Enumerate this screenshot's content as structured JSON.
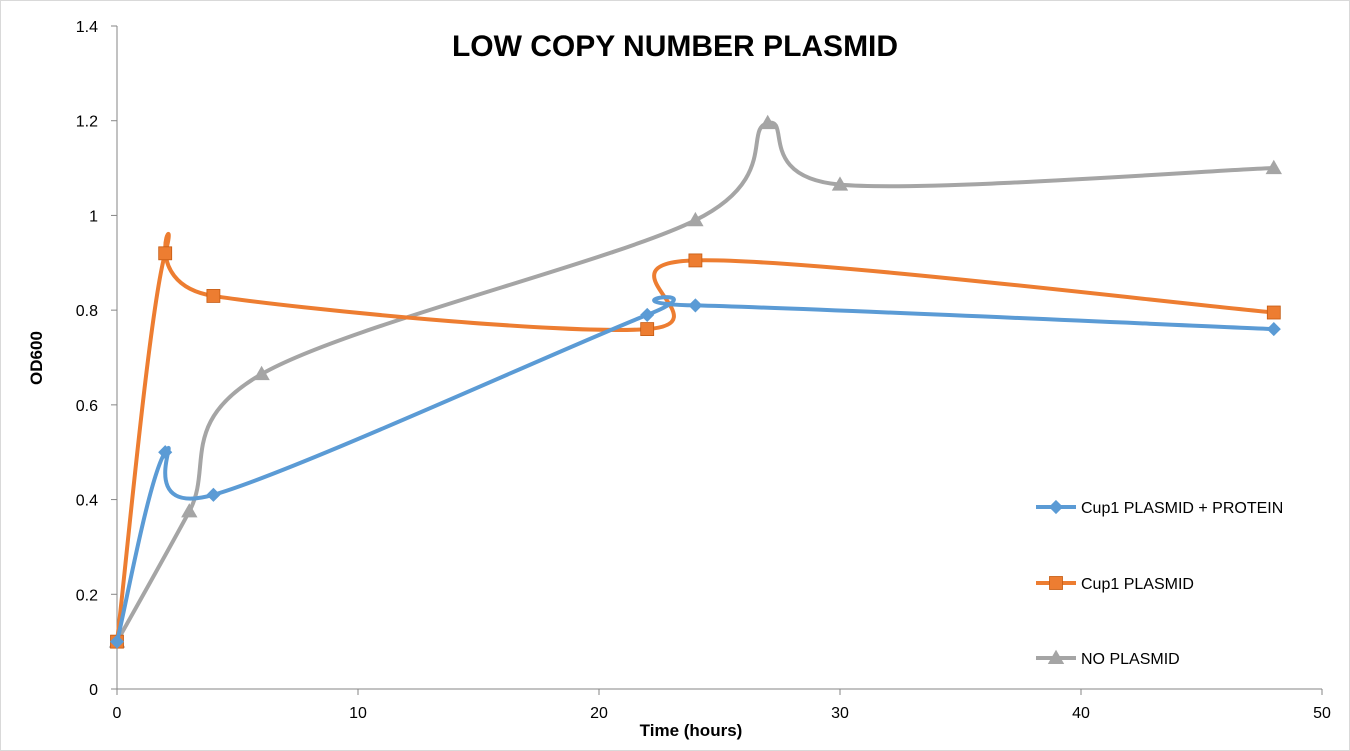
{
  "chart_data": {
    "type": "line",
    "title": "LOW COPY NUMBER PLASMID",
    "xlabel": "Time (hours)",
    "ylabel": "OD600",
    "xlim": [
      0,
      50
    ],
    "ylim": [
      0,
      1.4
    ],
    "x_ticks": [
      "0",
      "10",
      "20",
      "30",
      "40",
      "50"
    ],
    "y_ticks": [
      "0",
      "0.2",
      "0.4",
      "0.6",
      "0.8",
      "1",
      "1.2",
      "1.4"
    ],
    "grid": false,
    "smooth": true,
    "legend_position": "right",
    "series": [
      {
        "name": "Cup1 PLASMID + PROTEIN",
        "color": "#5b9bd5",
        "marker": "diamond",
        "points": [
          [
            0,
            0.1
          ],
          [
            2,
            0.5
          ],
          [
            4,
            0.41
          ],
          [
            22,
            0.79
          ],
          [
            24,
            0.81
          ],
          [
            48,
            0.76
          ]
        ]
      },
      {
        "name": "Cup1 PLASMID",
        "color": "#ed7d31",
        "marker": "square",
        "points": [
          [
            0,
            0.1
          ],
          [
            2,
            0.92
          ],
          [
            4,
            0.83
          ],
          [
            22,
            0.76
          ],
          [
            24,
            0.905
          ],
          [
            48,
            0.795
          ]
        ]
      },
      {
        "name": "NO PLASMID",
        "color": "#a5a5a5",
        "marker": "triangle",
        "points": [
          [
            0,
            0.1
          ],
          [
            3,
            0.375
          ],
          [
            6,
            0.665
          ],
          [
            24,
            0.99
          ],
          [
            27,
            1.195
          ],
          [
            30,
            1.065
          ],
          [
            48,
            1.1
          ]
        ]
      }
    ]
  }
}
